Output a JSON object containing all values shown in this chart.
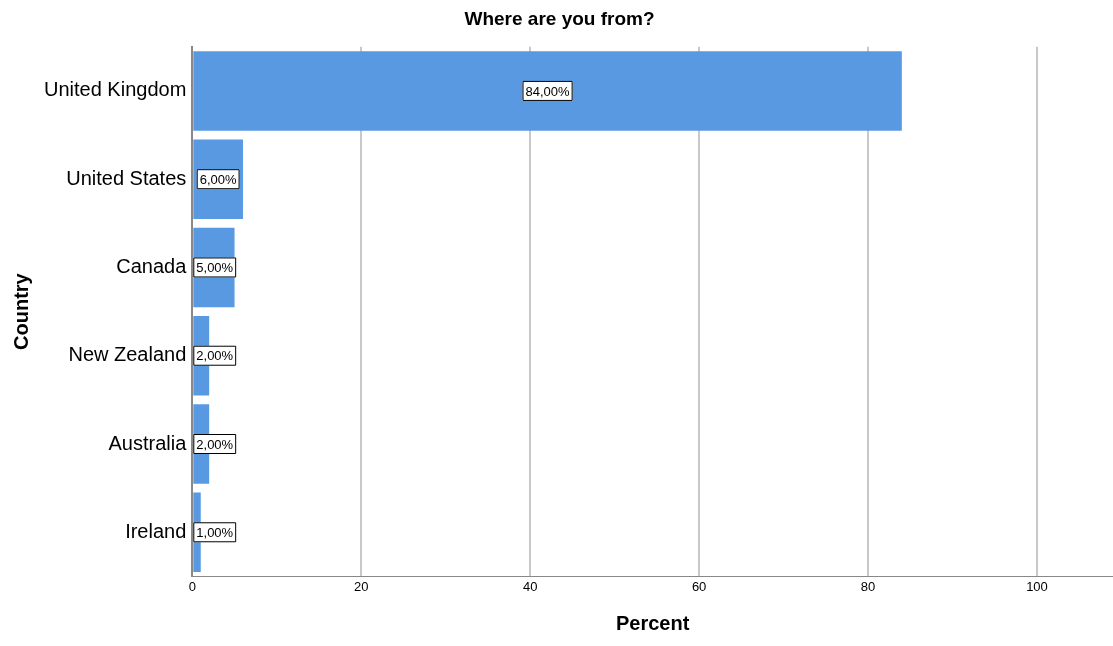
{
  "chart_data": {
    "type": "bar",
    "orientation": "horizontal",
    "title": "Where are you from?",
    "xlabel": "Percent",
    "ylabel": "Country",
    "categories": [
      "United Kingdom",
      "United States",
      "Canada",
      "New Zealand",
      "Australia",
      "Ireland"
    ],
    "values": [
      84,
      6,
      5,
      2,
      2,
      1
    ],
    "value_labels": [
      "84,00%",
      "6,00%",
      "5,00%",
      "2,00%",
      "2,00%",
      "1,00%"
    ],
    "color": "#5899e2",
    "xlim": [
      0,
      109
    ],
    "xticks": [
      0,
      20,
      40,
      60,
      80,
      100
    ],
    "grid": "x"
  }
}
